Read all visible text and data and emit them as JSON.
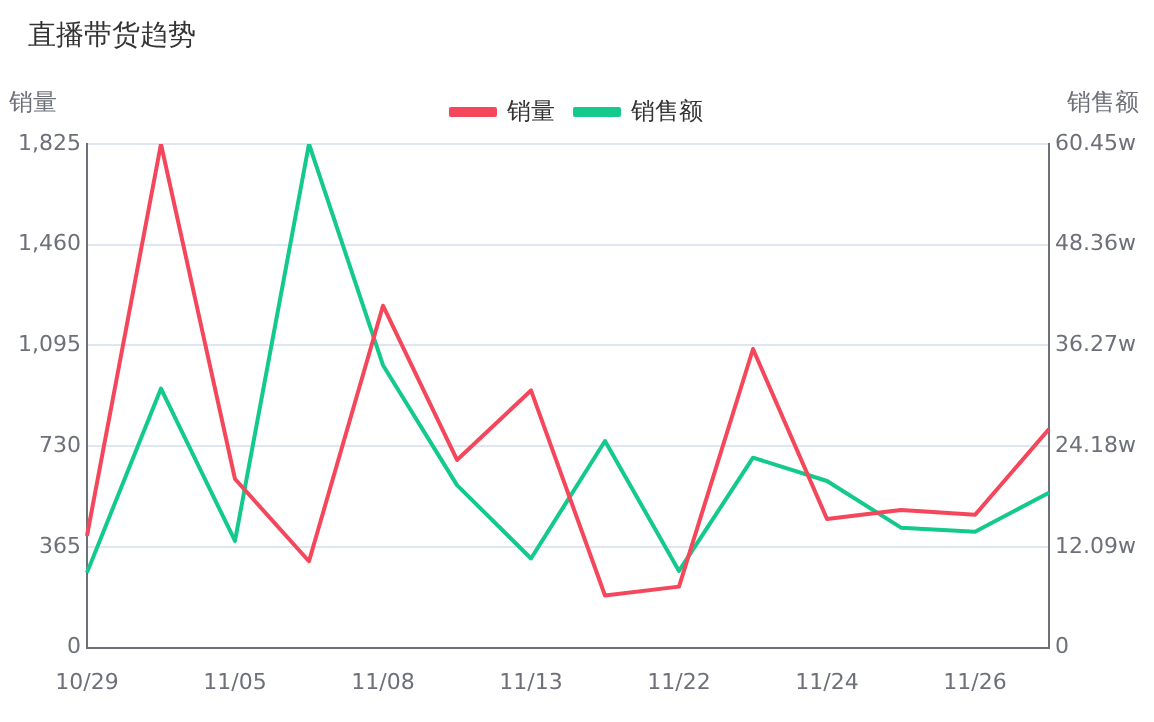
{
  "chart_data": {
    "type": "line",
    "title": "直播带货趋势",
    "ylabel": "销量",
    "y2label": "销售额",
    "categories": [
      "10/29",
      null,
      "11/05",
      null,
      "11/08",
      null,
      "11/13",
      null,
      "11/22",
      null,
      "11/24",
      null,
      "11/26",
      null
    ],
    "series": [
      {
        "name": "销量",
        "color": "#f5475c",
        "values": [
          405,
          1825,
          611,
          313,
          1239,
          680,
          932,
          189,
          221,
          1082,
          466,
          499,
          481,
          792
        ]
      },
      {
        "name": "销售额",
        "color": "#13c98c",
        "axis": "y2",
        "values": [
          9.0,
          31.1,
          12.8,
          60.45,
          33.9,
          19.5,
          10.7,
          24.8,
          9.2,
          22.8,
          20.0,
          14.4,
          13.9,
          18.6
        ]
      }
    ],
    "ylim": [
      0,
      1825
    ],
    "yticks": [
      0,
      365,
      730,
      {
        "value": 1095,
        "label": "1,095"
      },
      {
        "value": 1460,
        "label": "1,460"
      },
      {
        "value": 1825,
        "label": "1,825"
      }
    ],
    "y2lim": [
      0,
      60.45
    ],
    "y2ticks": [
      0,
      {
        "value": 12.09,
        "label": "12.09w"
      },
      {
        "value": 24.18,
        "label": "24.18w"
      },
      {
        "value": 36.27,
        "label": "36.27w"
      },
      {
        "value": 48.36,
        "label": "48.36w"
      },
      {
        "value": 60.45,
        "label": "60.45w"
      }
    ],
    "grid": "y",
    "legend": "top",
    "marker": "none",
    "line_style": "solid"
  }
}
